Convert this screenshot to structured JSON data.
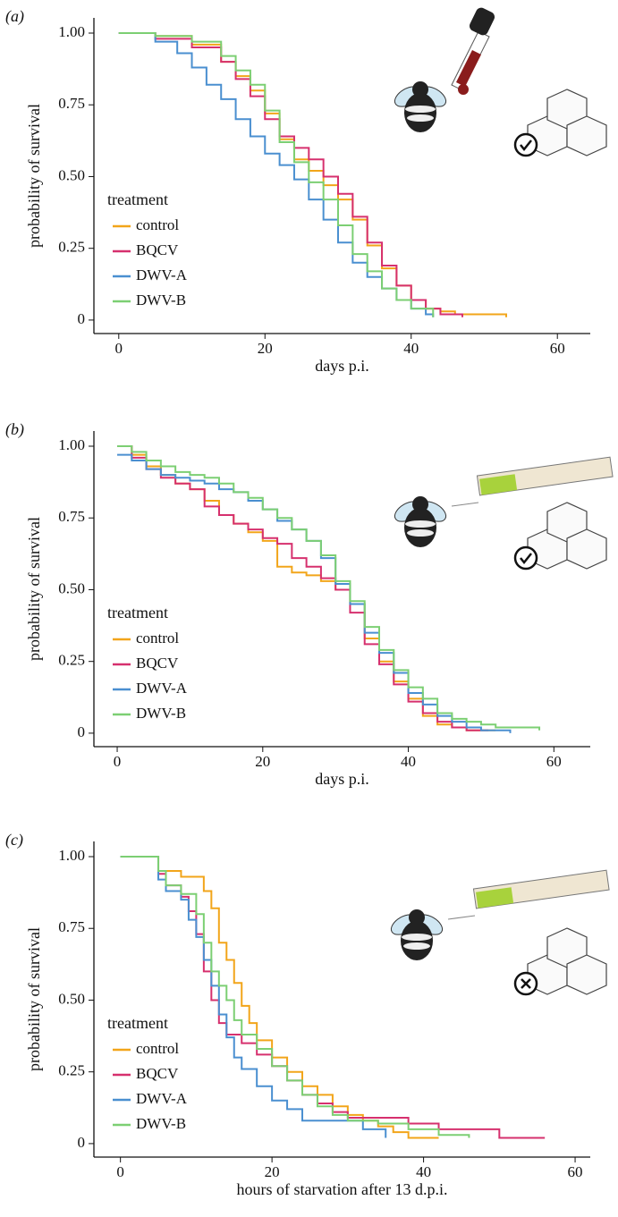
{
  "chart_data": [
    {
      "type": "line",
      "step": true,
      "panel_label": "(a)",
      "xlabel": "days p.i.",
      "ylabel": "probability of survival",
      "legend_title": "treatment",
      "xlim": [
        -3.4,
        64.5
      ],
      "ylim": [
        -0.047,
        1.053
      ],
      "xticks": [
        0,
        20,
        40,
        60
      ],
      "yticks": [
        0,
        {
          "value": 0.25,
          "label": "0.25"
        },
        {
          "value": 0.5,
          "label": "0.50"
        },
        {
          "value": 0.75,
          "label": "0.75"
        },
        {
          "value": 1,
          "label": "1.00"
        }
      ],
      "series": [
        {
          "name": "control",
          "color": "#f2a51a",
          "x": [
            0,
            5,
            10,
            14,
            16,
            18,
            20,
            22,
            24,
            26,
            28,
            30,
            32,
            34,
            36,
            38,
            40,
            42,
            44,
            46,
            48,
            53
          ],
          "values": [
            1,
            0.99,
            0.96,
            0.9,
            0.85,
            0.8,
            0.72,
            0.63,
            0.56,
            0.52,
            0.47,
            0.42,
            0.35,
            0.26,
            0.18,
            0.12,
            0.07,
            0.04,
            0.03,
            0.02,
            0.02,
            0.01
          ]
        },
        {
          "name": "BQCV",
          "color": "#d6306e",
          "x": [
            0,
            5,
            10,
            14,
            16,
            18,
            20,
            22,
            24,
            26,
            28,
            30,
            32,
            34,
            36,
            38,
            40,
            42,
            44,
            47
          ],
          "values": [
            1,
            0.98,
            0.95,
            0.9,
            0.84,
            0.78,
            0.7,
            0.64,
            0.6,
            0.56,
            0.5,
            0.44,
            0.36,
            0.27,
            0.19,
            0.12,
            0.07,
            0.04,
            0.02,
            0.01
          ]
        },
        {
          "name": "DWV-A",
          "color": "#4a8fd0",
          "x": [
            0,
            5,
            8,
            10,
            12,
            14,
            16,
            18,
            20,
            22,
            24,
            26,
            28,
            30,
            32,
            34,
            36,
            38,
            40,
            42,
            43
          ],
          "values": [
            1,
            0.97,
            0.93,
            0.88,
            0.82,
            0.77,
            0.7,
            0.64,
            0.58,
            0.54,
            0.49,
            0.42,
            0.35,
            0.27,
            0.2,
            0.15,
            0.11,
            0.07,
            0.04,
            0.02,
            0.01
          ]
        },
        {
          "name": "DWV-B",
          "color": "#7ccf73",
          "x": [
            0,
            5,
            10,
            14,
            16,
            18,
            20,
            22,
            24,
            26,
            28,
            30,
            32,
            34,
            36,
            38,
            40,
            43
          ],
          "values": [
            1,
            0.99,
            0.97,
            0.92,
            0.87,
            0.82,
            0.73,
            0.62,
            0.55,
            0.48,
            0.42,
            0.33,
            0.23,
            0.17,
            0.11,
            0.07,
            0.04,
            0.01
          ]
        }
      ]
    },
    {
      "type": "line",
      "step": true,
      "panel_label": "(b)",
      "xlabel": "days p.i.",
      "ylabel": "probability of survival",
      "legend_title": "treatment",
      "xlim": [
        -3.2,
        65
      ],
      "ylim": [
        -0.047,
        1.053
      ],
      "xticks": [
        0,
        20,
        40,
        60
      ],
      "yticks": [
        0,
        {
          "value": 0.25,
          "label": "0.25"
        },
        {
          "value": 0.5,
          "label": "0.50"
        },
        {
          "value": 0.75,
          "label": "0.75"
        },
        {
          "value": 1,
          "label": "1.00"
        }
      ],
      "series": [
        {
          "name": "control",
          "color": "#f2a51a",
          "x": [
            0,
            2,
            4,
            6,
            8,
            10,
            12,
            14,
            16,
            18,
            20,
            22,
            24,
            26,
            28,
            30,
            32,
            34,
            36,
            38,
            40,
            42,
            44,
            46,
            48,
            52
          ],
          "values": [
            1,
            0.97,
            0.93,
            0.9,
            0.87,
            0.85,
            0.81,
            0.76,
            0.73,
            0.7,
            0.67,
            0.58,
            0.56,
            0.55,
            0.53,
            0.5,
            0.45,
            0.33,
            0.25,
            0.18,
            0.12,
            0.06,
            0.03,
            0.02,
            0.01,
            0.01
          ]
        },
        {
          "name": "BQCV",
          "color": "#d6306e",
          "x": [
            0,
            2,
            4,
            6,
            8,
            10,
            12,
            14,
            16,
            18,
            20,
            22,
            24,
            26,
            28,
            30,
            32,
            34,
            36,
            38,
            40,
            42,
            44,
            46,
            48,
            51
          ],
          "values": [
            1,
            0.96,
            0.92,
            0.89,
            0.87,
            0.85,
            0.79,
            0.76,
            0.73,
            0.71,
            0.68,
            0.66,
            0.61,
            0.58,
            0.54,
            0.5,
            0.42,
            0.31,
            0.24,
            0.17,
            0.11,
            0.07,
            0.04,
            0.02,
            0.01,
            0.01
          ]
        },
        {
          "name": "DWV-A",
          "color": "#4a8fd0",
          "x": [
            0,
            2,
            4,
            6,
            8,
            10,
            12,
            14,
            16,
            18,
            20,
            22,
            24,
            26,
            28,
            30,
            32,
            34,
            36,
            38,
            40,
            42,
            44,
            46,
            48,
            50,
            54
          ],
          "values": [
            0.97,
            0.95,
            0.92,
            0.9,
            0.89,
            0.88,
            0.87,
            0.85,
            0.84,
            0.81,
            0.78,
            0.74,
            0.71,
            0.67,
            0.61,
            0.52,
            0.45,
            0.35,
            0.28,
            0.21,
            0.14,
            0.1,
            0.06,
            0.04,
            0.02,
            0.01,
            0
          ]
        },
        {
          "name": "DWV-B",
          "color": "#7ccf73",
          "x": [
            0,
            2,
            4,
            6,
            8,
            10,
            12,
            14,
            16,
            18,
            20,
            22,
            24,
            26,
            28,
            30,
            32,
            34,
            36,
            38,
            40,
            42,
            44,
            46,
            48,
            50,
            52,
            58
          ],
          "values": [
            1,
            0.98,
            0.95,
            0.93,
            0.91,
            0.9,
            0.89,
            0.87,
            0.84,
            0.82,
            0.78,
            0.75,
            0.71,
            0.67,
            0.62,
            0.53,
            0.46,
            0.37,
            0.29,
            0.22,
            0.16,
            0.12,
            0.07,
            0.05,
            0.04,
            0.03,
            0.02,
            0.01
          ]
        }
      ]
    },
    {
      "type": "line",
      "step": true,
      "panel_label": "(c)",
      "xlabel": "hours of starvation after 13 d.p.i.",
      "ylabel": "probability of survival",
      "legend_title": "treatment",
      "xlim": [
        -3.5,
        62
      ],
      "ylim": [
        -0.047,
        1.053
      ],
      "xticks": [
        0,
        20,
        40,
        60
      ],
      "yticks": [
        0,
        {
          "value": 0.25,
          "label": "0.25"
        },
        {
          "value": 0.5,
          "label": "0.50"
        },
        {
          "value": 0.75,
          "label": "0.75"
        },
        {
          "value": 1,
          "label": "1.00"
        }
      ],
      "series": [
        {
          "name": "control",
          "color": "#f2a51a",
          "x": [
            0,
            4,
            5,
            8,
            10,
            11,
            12,
            13,
            14,
            15,
            16,
            17,
            18,
            20,
            22,
            24,
            26,
            28,
            30,
            32,
            34,
            36,
            38,
            42
          ],
          "values": [
            1,
            1,
            0.95,
            0.93,
            0.93,
            0.88,
            0.82,
            0.7,
            0.64,
            0.56,
            0.48,
            0.42,
            0.36,
            0.3,
            0.25,
            0.2,
            0.17,
            0.13,
            0.1,
            0.08,
            0.06,
            0.04,
            0.02,
            0.02
          ]
        },
        {
          "name": "BQCV",
          "color": "#d6306e",
          "x": [
            0,
            4,
            5,
            6,
            8,
            9,
            10,
            11,
            12,
            13,
            14,
            16,
            18,
            20,
            22,
            24,
            26,
            28,
            30,
            34,
            38,
            42,
            46,
            50,
            56
          ],
          "values": [
            1,
            1,
            0.94,
            0.9,
            0.86,
            0.81,
            0.73,
            0.6,
            0.5,
            0.42,
            0.38,
            0.35,
            0.31,
            0.27,
            0.22,
            0.17,
            0.14,
            0.11,
            0.09,
            0.09,
            0.07,
            0.05,
            0.05,
            0.02,
            0.02
          ]
        },
        {
          "name": "DWV-A",
          "color": "#4a8fd0",
          "x": [
            0,
            4,
            5,
            6,
            8,
            9,
            10,
            11,
            12,
            13,
            14,
            15,
            16,
            18,
            20,
            22,
            24,
            28,
            32,
            35
          ],
          "values": [
            1,
            1,
            0.92,
            0.88,
            0.85,
            0.78,
            0.72,
            0.64,
            0.55,
            0.45,
            0.37,
            0.3,
            0.26,
            0.2,
            0.15,
            0.12,
            0.08,
            0.08,
            0.05,
            0.02
          ]
        },
        {
          "name": "DWV-B",
          "color": "#7ccf73",
          "x": [
            0,
            4,
            5,
            6,
            8,
            10,
            11,
            12,
            13,
            14,
            15,
            16,
            18,
            20,
            22,
            24,
            26,
            28,
            30,
            34,
            38,
            42,
            46
          ],
          "values": [
            1,
            1,
            0.95,
            0.9,
            0.87,
            0.8,
            0.7,
            0.6,
            0.55,
            0.5,
            0.43,
            0.38,
            0.33,
            0.27,
            0.22,
            0.17,
            0.13,
            0.1,
            0.08,
            0.07,
            0.05,
            0.03,
            0.02
          ]
        }
      ]
    }
  ]
}
